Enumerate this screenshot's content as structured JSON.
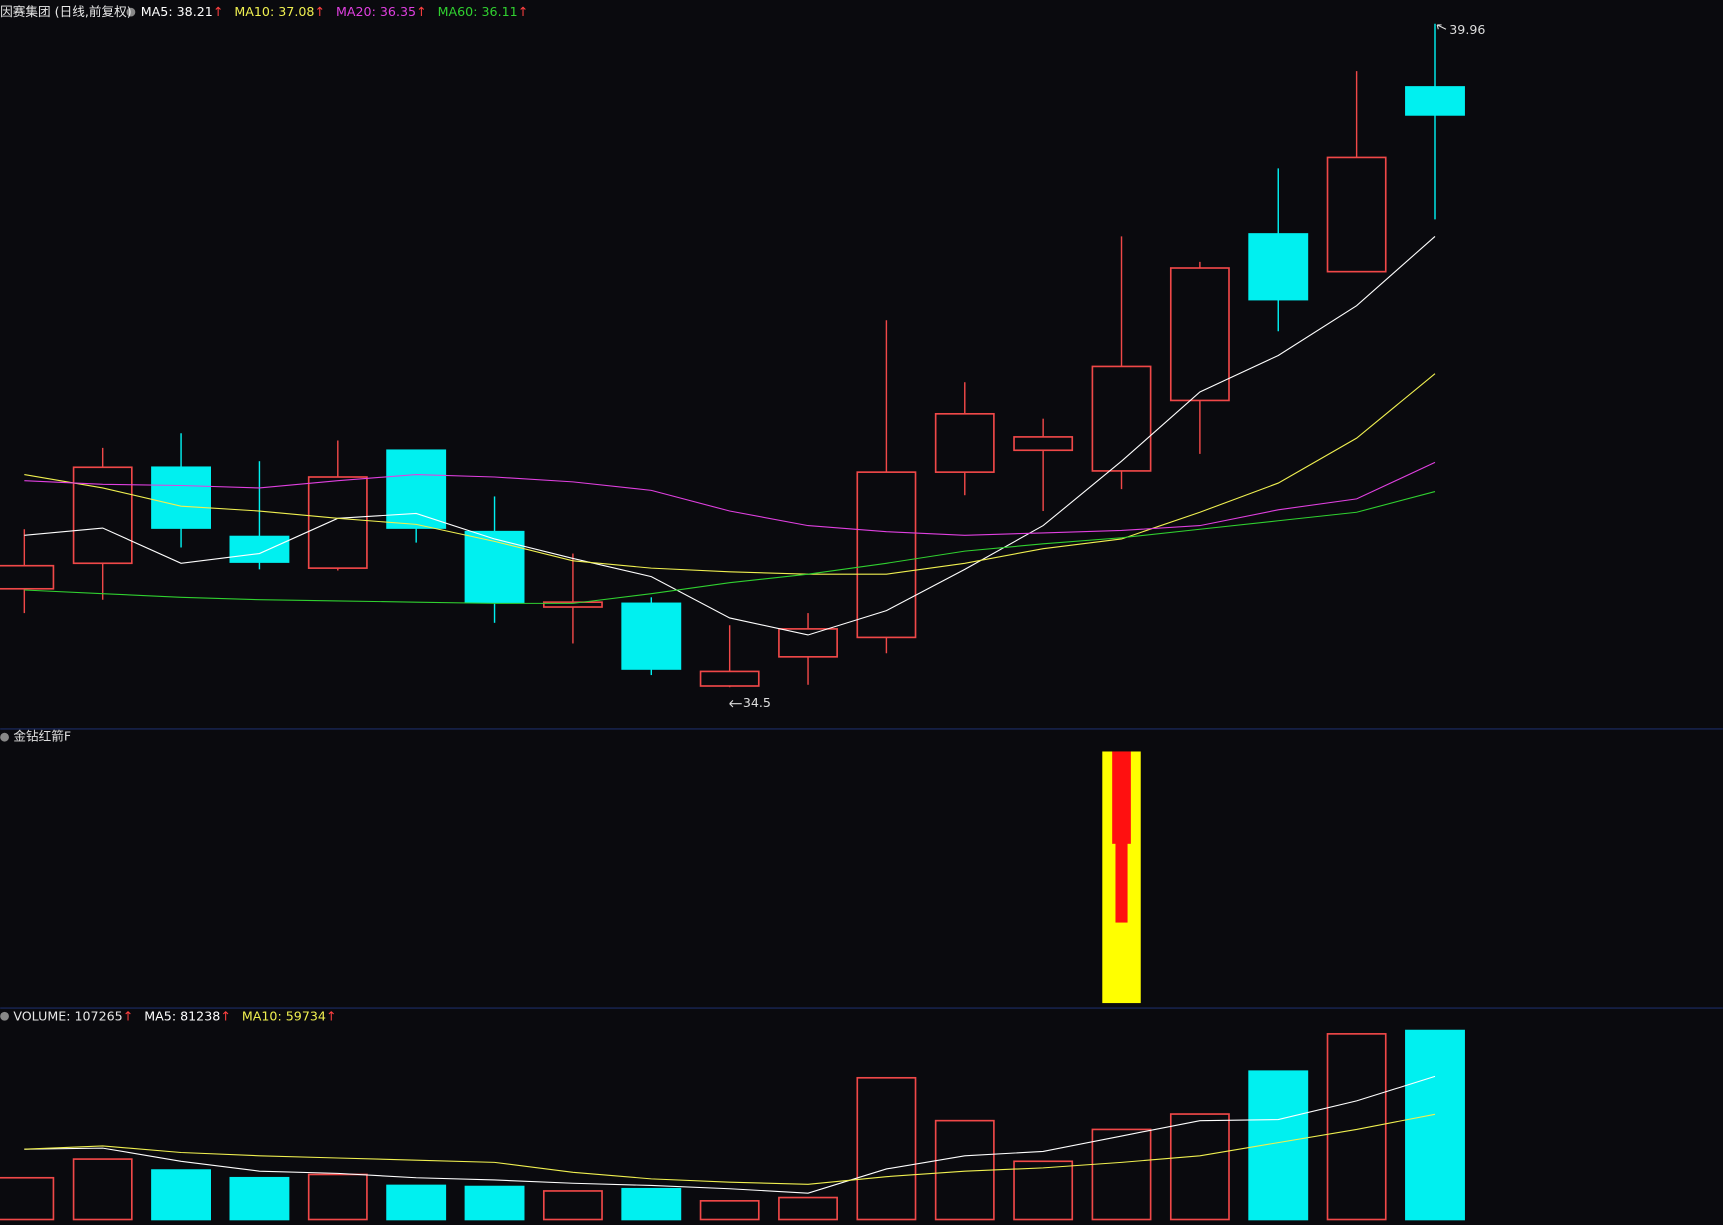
{
  "separator": ": ",
  "trend_marker": "↑",
  "chart_data": [
    {
      "type": "candlestick",
      "title": "因赛集团 (日线,前复权)",
      "up_color": "#f04848",
      "down_color": "#00f0f0",
      "ylim": [
        34.17,
        40.02
      ],
      "open": [
        35.31,
        35.52,
        36.31,
        35.74,
        35.48,
        36.45,
        35.78,
        35.16,
        35.19,
        34.51,
        34.75,
        34.91,
        36.27,
        36.45,
        36.28,
        36.86,
        38.23,
        37.92,
        39.44
      ],
      "high": [
        35.8,
        36.47,
        36.59,
        36.36,
        36.53,
        36.45,
        36.07,
        35.6,
        35.24,
        35.01,
        35.11,
        37.52,
        37.01,
        36.71,
        38.21,
        38.0,
        38.77,
        39.57,
        39.96
      ],
      "low": [
        35.11,
        35.22,
        35.65,
        35.47,
        35.46,
        35.69,
        35.03,
        34.86,
        34.6,
        34.5,
        34.52,
        34.78,
        36.08,
        35.95,
        36.13,
        36.42,
        37.43,
        37.92,
        38.35
      ],
      "close": [
        35.5,
        36.31,
        35.81,
        35.53,
        36.23,
        35.81,
        35.2,
        35.2,
        34.65,
        34.63,
        34.98,
        36.27,
        36.75,
        36.56,
        37.14,
        37.95,
        37.69,
        38.86,
        39.21
      ],
      "series": [
        {
          "name": "MA5",
          "color": "#ffffff",
          "values": [
            35.75,
            35.81,
            35.52,
            35.6,
            35.89,
            35.93,
            35.72,
            35.56,
            35.41,
            35.07,
            34.93,
            35.13,
            35.47,
            35.83,
            36.36,
            36.93,
            37.23,
            37.64,
            38.21
          ]
        },
        {
          "name": "MA10",
          "color": "#f0f050",
          "values": [
            36.25,
            36.14,
            35.99,
            35.95,
            35.89,
            35.84,
            35.7,
            35.54,
            35.48,
            35.45,
            35.43,
            35.43,
            35.52,
            35.64,
            35.72,
            35.94,
            36.18,
            36.55,
            37.08
          ]
        },
        {
          "name": "MA20",
          "color": "#e040e0",
          "values": [
            36.2,
            36.17,
            36.16,
            36.14,
            36.2,
            36.25,
            36.23,
            36.19,
            36.12,
            35.95,
            35.83,
            35.78,
            35.75,
            35.77,
            35.79,
            35.83,
            35.96,
            36.05,
            36.35
          ]
        },
        {
          "name": "MA60",
          "color": "#30d030",
          "values": [
            35.3,
            35.27,
            35.24,
            35.22,
            35.21,
            35.2,
            35.19,
            35.19,
            35.27,
            35.36,
            35.43,
            35.52,
            35.62,
            35.68,
            35.73,
            35.8,
            35.87,
            35.94,
            36.11
          ]
        }
      ]
    },
    {
      "type": "signal",
      "title": "金钻红箭F",
      "color": "#ffff00",
      "core_color": "#ff1010",
      "ylim": [
        0,
        1
      ],
      "values": [
        null,
        null,
        null,
        null,
        null,
        null,
        null,
        null,
        null,
        null,
        null,
        null,
        null,
        null,
        1,
        null,
        null,
        null,
        null
      ]
    },
    {
      "type": "volume",
      "name": "VOLUME",
      "ylim": [
        0,
        120000
      ],
      "values": [
        23700,
        34300,
        28060,
        23700,
        25570,
        19330,
        18710,
        16210,
        17460,
        10600,
        12470,
        80450,
        56120,
        33050,
        51140,
        59870,
        84190,
        105390,
        107265
      ],
      "series": [
        {
          "name": "MA5",
          "color": "#ffffff",
          "values": [
            39910,
            40530,
            33050,
            27440,
            26190,
            23700,
            22450,
            20580,
            19330,
            17460,
            14970,
            28690,
            36170,
            38660,
            47390,
            56120,
            56750,
            67350,
            81238
          ]
        },
        {
          "name": "MA10",
          "color": "#f0f050",
          "values": [
            39910,
            41780,
            38040,
            36170,
            34920,
            33670,
            32430,
            26810,
            23070,
            21200,
            19960,
            24320,
            27440,
            29310,
            32430,
            36170,
            43650,
            51140,
            59734
          ]
        }
      ]
    }
  ]
}
